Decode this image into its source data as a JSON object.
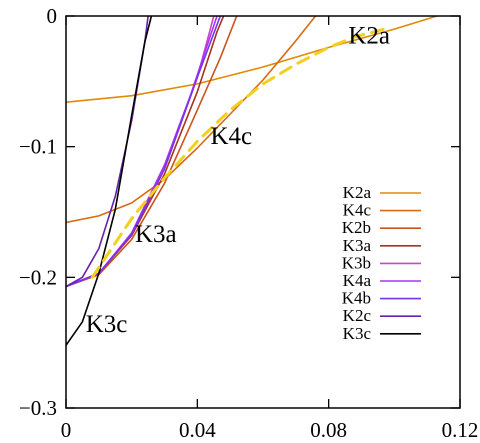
{
  "chart_data": {
    "type": "line",
    "title": "",
    "xlabel": "",
    "ylabel": "",
    "xlim": [
      0,
      0.12
    ],
    "ylim": [
      -0.3,
      0
    ],
    "x_ticks": [
      0,
      0.04,
      0.08,
      0.12
    ],
    "y_ticks": [
      -0.3,
      -0.2,
      -0.1,
      0
    ],
    "x_tick_labels": [
      "0",
      "0.04",
      "0.08",
      "0.12"
    ],
    "y_tick_labels": [
      "−0.3",
      "−0.2",
      "−0.1",
      "0"
    ],
    "grid": false,
    "legend_position": "lower-right",
    "series": [
      {
        "name": "K2a",
        "color": "#e08a00",
        "style": "solid",
        "points": [
          [
            0,
            -0.066
          ],
          [
            0.02,
            -0.061
          ],
          [
            0.04,
            -0.052
          ],
          [
            0.06,
            -0.039
          ],
          [
            0.08,
            -0.024
          ],
          [
            0.1,
            -0.01
          ],
          [
            0.113,
            0
          ]
        ]
      },
      {
        "name": "K4c",
        "color": "#da6a10",
        "style": "solid",
        "points": [
          [
            0,
            -0.158
          ],
          [
            0.01,
            -0.153
          ],
          [
            0.02,
            -0.143
          ],
          [
            0.03,
            -0.125
          ],
          [
            0.04,
            -0.101
          ],
          [
            0.05,
            -0.075
          ],
          [
            0.06,
            -0.049
          ],
          [
            0.07,
            -0.019
          ],
          [
            0.076,
            0
          ]
        ]
      },
      {
        "name": "K2b",
        "color": "#c9541a",
        "style": "solid",
        "points": [
          [
            0,
            -0.207
          ],
          [
            0.01,
            -0.198
          ],
          [
            0.02,
            -0.171
          ],
          [
            0.03,
            -0.128
          ],
          [
            0.04,
            -0.072
          ],
          [
            0.047,
            -0.032
          ],
          [
            0.052,
            0
          ]
        ]
      },
      {
        "name": "K3a",
        "color": "#a83220",
        "style": "solid",
        "points": [
          [
            0,
            -0.207
          ],
          [
            0.01,
            -0.197
          ],
          [
            0.02,
            -0.168
          ],
          [
            0.03,
            -0.121
          ],
          [
            0.04,
            -0.058
          ],
          [
            0.046,
            -0.012
          ],
          [
            0.048,
            0
          ]
        ]
      },
      {
        "name": "K3b",
        "color": "#cc44cc",
        "style": "solid",
        "points": [
          [
            0,
            -0.207
          ],
          [
            0.01,
            -0.197
          ],
          [
            0.02,
            -0.167
          ],
          [
            0.03,
            -0.117
          ],
          [
            0.04,
            -0.047
          ],
          [
            0.045,
            0
          ]
        ]
      },
      {
        "name": "K4a",
        "color": "#aa33ee",
        "style": "solid",
        "points": [
          [
            0,
            -0.207
          ],
          [
            0.01,
            -0.197
          ],
          [
            0.02,
            -0.166
          ],
          [
            0.03,
            -0.114
          ],
          [
            0.038,
            -0.06
          ],
          [
            0.046,
            0
          ]
        ]
      },
      {
        "name": "K4b",
        "color": "#7733ee",
        "style": "solid",
        "points": [
          [
            0,
            -0.207
          ],
          [
            0.01,
            -0.197
          ],
          [
            0.02,
            -0.167
          ],
          [
            0.03,
            -0.117
          ],
          [
            0.04,
            -0.047
          ],
          [
            0.047,
            0
          ]
        ]
      },
      {
        "name": "K2c",
        "color": "#6622aa",
        "style": "solid",
        "points": [
          [
            0,
            -0.207
          ],
          [
            0.005,
            -0.2
          ],
          [
            0.01,
            -0.178
          ],
          [
            0.015,
            -0.138
          ],
          [
            0.02,
            -0.08
          ],
          [
            0.024,
            -0.02
          ],
          [
            0.025,
            0
          ]
        ]
      },
      {
        "name": "K3c",
        "color": "#000000",
        "style": "solid",
        "points": [
          [
            0,
            -0.252
          ],
          [
            0.005,
            -0.234
          ],
          [
            0.01,
            -0.197
          ],
          [
            0.015,
            -0.148
          ],
          [
            0.02,
            -0.076
          ],
          [
            0.024,
            -0.02
          ],
          [
            0.026,
            0
          ]
        ]
      },
      {
        "name": "",
        "color": "#f0d020",
        "style": "dashed",
        "points": [
          [
            0.008,
            -0.2
          ],
          [
            0.02,
            -0.155
          ],
          [
            0.03,
            -0.124
          ],
          [
            0.04,
            -0.096
          ],
          [
            0.05,
            -0.072
          ],
          [
            0.06,
            -0.052
          ],
          [
            0.07,
            -0.037
          ],
          [
            0.08,
            -0.024
          ],
          [
            0.088,
            -0.016
          ],
          [
            0.097,
            -0.01
          ]
        ]
      }
    ],
    "annotations": [
      {
        "text": "K2a",
        "x": 0.086,
        "y": -0.014
      },
      {
        "text": "K4c",
        "x": 0.044,
        "y": -0.091
      },
      {
        "text": "K3a",
        "x": 0.021,
        "y": -0.166
      },
      {
        "text": "K3c",
        "x": 0.006,
        "y": -0.235
      }
    ]
  }
}
